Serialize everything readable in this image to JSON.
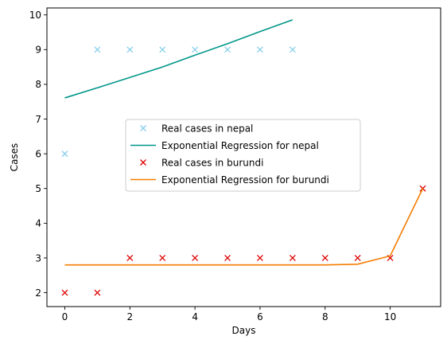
{
  "chart_data": {
    "type": "line",
    "xlabel": "Days",
    "ylabel": "Cases",
    "xlim": [
      -0.55,
      11.55
    ],
    "ylim": [
      1.6,
      10.2
    ],
    "xticks": [
      0,
      2,
      4,
      6,
      8,
      10
    ],
    "yticks": [
      2,
      3,
      4,
      5,
      6,
      7,
      8,
      9,
      10
    ],
    "grid": false,
    "legend_position": "center",
    "series": [
      {
        "name": "Real cases in nepal",
        "kind": "scatter",
        "marker": "x",
        "color": "#87ceeb",
        "x": [
          0,
          1,
          2,
          3,
          4,
          5,
          6,
          7
        ],
        "y": [
          6,
          9,
          9,
          9,
          9,
          9,
          9,
          9
        ]
      },
      {
        "name": "Exponential Regression for nepal",
        "kind": "line",
        "color": "#009688",
        "x": [
          0,
          1,
          2,
          3,
          4,
          5,
          6,
          7
        ],
        "y": [
          7.61,
          7.9,
          8.2,
          8.5,
          8.84,
          9.17,
          9.52,
          9.86
        ]
      },
      {
        "name": "Real cases in burundi",
        "kind": "scatter",
        "marker": "x",
        "color": "#dd0000",
        "x": [
          0,
          1,
          2,
          3,
          4,
          5,
          6,
          7,
          8,
          9,
          10,
          11
        ],
        "y": [
          2,
          2,
          3,
          3,
          3,
          3,
          3,
          3,
          3,
          3,
          3,
          5
        ]
      },
      {
        "name": "Exponential Regression for burundi",
        "kind": "line",
        "color": "#f57c00",
        "x": [
          0,
          1,
          2,
          3,
          4,
          5,
          6,
          7,
          8,
          9,
          10,
          11
        ],
        "y": [
          2.8,
          2.8,
          2.8,
          2.8,
          2.8,
          2.8,
          2.8,
          2.8,
          2.8,
          2.82,
          3.06,
          5.0
        ]
      }
    ]
  }
}
